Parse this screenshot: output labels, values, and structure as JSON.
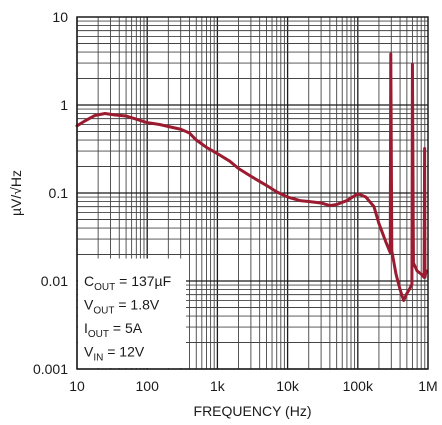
{
  "chart_data": {
    "type": "line",
    "title": "",
    "xlabel": "FREQUENCY (Hz)",
    "ylabel": "µV/√Hz",
    "x_scale": "log",
    "y_scale": "log",
    "xlim": [
      10,
      1000000
    ],
    "ylim": [
      0.001,
      10
    ],
    "grid": true,
    "x_ticks": [
      {
        "value": 10,
        "label": "10"
      },
      {
        "value": 100,
        "label": "100"
      },
      {
        "value": 1000,
        "label": "1k"
      },
      {
        "value": 10000,
        "label": "10k"
      },
      {
        "value": 100000,
        "label": "100k"
      },
      {
        "value": 1000000,
        "label": "1M"
      }
    ],
    "y_ticks": [
      {
        "value": 10,
        "label": "10"
      },
      {
        "value": 1,
        "label": "1"
      },
      {
        "value": 0.1,
        "label": "0.1"
      },
      {
        "value": 0.01,
        "label": "0.01"
      },
      {
        "value": 0.001,
        "label": "0.001"
      }
    ],
    "series": [
      {
        "color": "#9b1b30",
        "x": [
          10,
          13,
          18,
          25,
          35,
          50,
          70,
          100,
          150,
          200,
          300,
          400,
          500,
          700,
          1000,
          1500,
          2000,
          3000,
          5000,
          7000,
          10000,
          15000,
          20000,
          30000,
          40000,
          50000,
          70000,
          100000,
          130000,
          170000,
          200000,
          250000,
          290000,
          295000,
          305000,
          350000,
          400000,
          450000,
          500000,
          550000,
          590000,
          600000,
          620000,
          700000,
          800000,
          880000,
          895000,
          905000,
          920000,
          950000
        ],
        "y": [
          0.58,
          0.66,
          0.76,
          0.8,
          0.77,
          0.75,
          0.69,
          0.63,
          0.6,
          0.57,
          0.53,
          0.48,
          0.4,
          0.33,
          0.28,
          0.23,
          0.19,
          0.155,
          0.122,
          0.103,
          0.09,
          0.082,
          0.08,
          0.077,
          0.072,
          0.074,
          0.082,
          0.098,
          0.09,
          0.07,
          0.045,
          0.028,
          0.021,
          3.8,
          0.022,
          0.012,
          0.008,
          0.006,
          0.0072,
          0.0082,
          0.0092,
          2.9,
          0.016,
          0.013,
          0.012,
          0.011,
          0.32,
          0.011,
          0.012,
          0.013
        ]
      }
    ],
    "annotations": [
      {
        "main": "C",
        "sub": "OUT",
        "rest": " = 137µF"
      },
      {
        "main": "V",
        "sub": "OUT",
        "rest": " = 1.8V"
      },
      {
        "main": "I",
        "sub": "OUT",
        "rest": " = 5A"
      },
      {
        "main": "V",
        "sub": "IN",
        "rest": " = 12V"
      }
    ]
  }
}
